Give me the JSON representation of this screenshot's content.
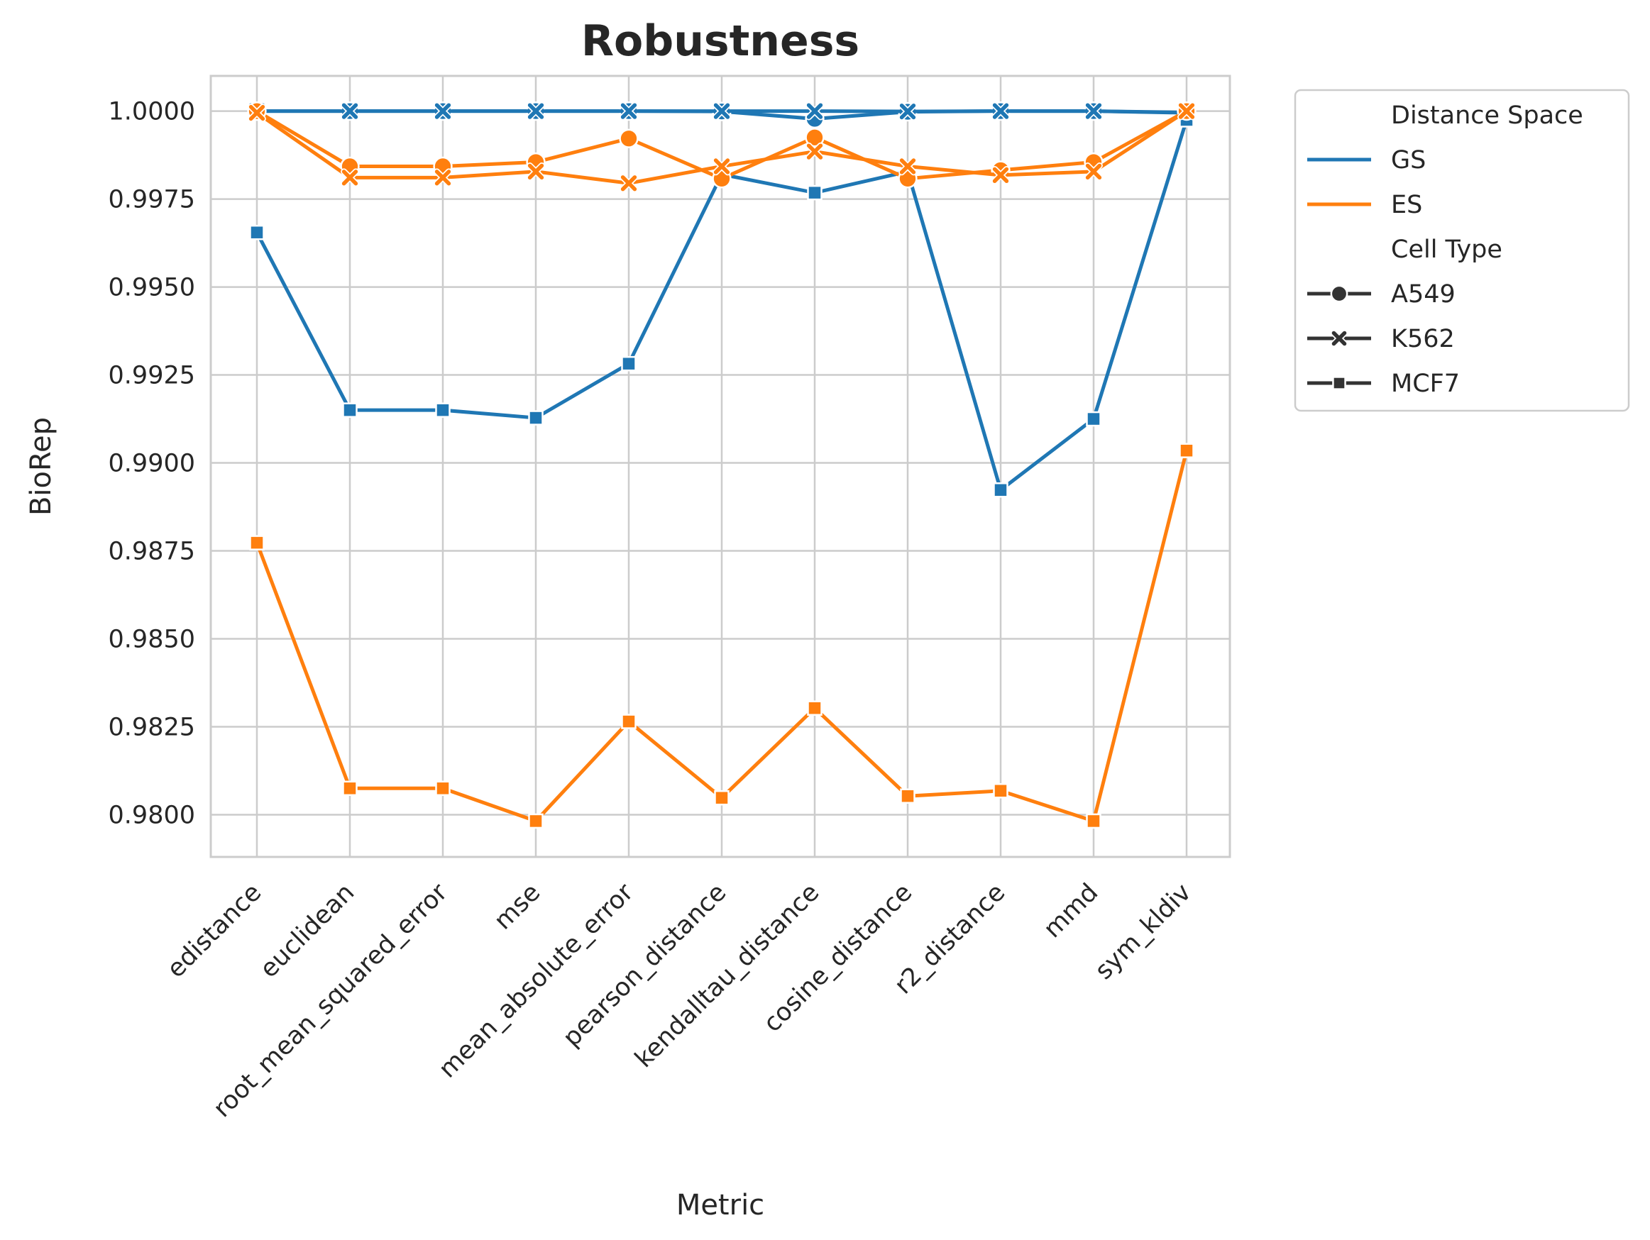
{
  "chart_data": {
    "type": "line",
    "title": "Robustness",
    "xlabel": "Metric",
    "ylabel": "BioRep",
    "categories": [
      "edistance",
      "euclidean",
      "root_mean_squared_error",
      "mse",
      "mean_absolute_error",
      "pearson_distance",
      "kendalltau_distance",
      "cosine_distance",
      "r2_distance",
      "mmd",
      "sym_kldiv"
    ],
    "ylim": [
      0.9788,
      1.001
    ],
    "yticks": [
      0.98,
      0.9825,
      0.985,
      0.9875,
      0.99,
      0.9925,
      0.995,
      0.9975,
      1.0
    ],
    "ytick_labels": [
      "0.9800",
      "0.9825",
      "0.9850",
      "0.9875",
      "0.9900",
      "0.9925",
      "0.9950",
      "0.9975",
      "1.0000"
    ],
    "grid": true,
    "legend": {
      "placement": "outside-upper-right",
      "hue_title": "Distance Space",
      "style_title": "Cell Type",
      "hue_entries": [
        {
          "name": "GS",
          "color": "#1f77b4"
        },
        {
          "name": "ES",
          "color": "#ff7f0e"
        }
      ],
      "style_entries": [
        {
          "name": "A549",
          "marker": "circle"
        },
        {
          "name": "K562",
          "marker": "x"
        },
        {
          "name": "MCF7",
          "marker": "square"
        }
      ]
    },
    "series": [
      {
        "space": "GS",
        "cell": "A549",
        "color": "#1f77b4",
        "marker": "circle",
        "values": [
          1.0,
          1.0,
          1.0,
          1.0,
          1.0,
          0.99999,
          0.99978,
          0.99998,
          1.0,
          1.0,
          0.99995
        ]
      },
      {
        "space": "GS",
        "cell": "K562",
        "color": "#1f77b4",
        "marker": "x",
        "values": [
          1.0,
          1.0,
          1.0,
          1.0,
          1.0,
          1.0,
          1.0,
          0.99999,
          1.0,
          1.0,
          0.99996
        ]
      },
      {
        "space": "GS",
        "cell": "MCF7",
        "color": "#1f77b4",
        "marker": "square",
        "values": [
          0.99655,
          0.9915,
          0.9915,
          0.99128,
          0.99282,
          0.9982,
          0.99768,
          0.99828,
          0.98923,
          0.99125,
          0.99975
        ]
      },
      {
        "space": "ES",
        "cell": "A549",
        "color": "#ff7f0e",
        "marker": "circle",
        "values": [
          1.0,
          0.99843,
          0.99843,
          0.99855,
          0.99922,
          0.99808,
          0.99925,
          0.99808,
          0.99832,
          0.99855,
          1.0
        ]
      },
      {
        "space": "ES",
        "cell": "K562",
        "color": "#ff7f0e",
        "marker": "x",
        "values": [
          0.99995,
          0.99811,
          0.99811,
          0.99828,
          0.99795,
          0.99843,
          0.99885,
          0.99843,
          0.99818,
          0.99828,
          1.0
        ]
      },
      {
        "space": "ES",
        "cell": "MCF7",
        "color": "#ff7f0e",
        "marker": "square",
        "values": [
          0.98773,
          0.98075,
          0.98075,
          0.97982,
          0.98265,
          0.98048,
          0.98303,
          0.98053,
          0.98068,
          0.97982,
          0.99035
        ]
      }
    ]
  }
}
